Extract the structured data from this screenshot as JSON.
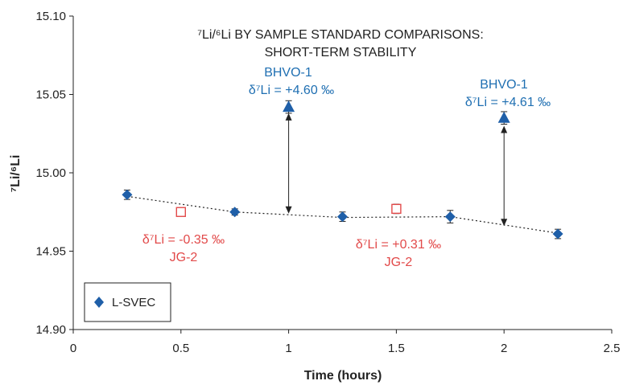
{
  "chart_data": {
    "type": "scatter",
    "title_lines": [
      "⁷Li/⁶Li BY SAMPLE STANDARD COMPARISONS:",
      "SHORT-TERM STABILITY"
    ],
    "xlabel": "Time (hours)",
    "ylabel": "⁷Li/⁶Li",
    "xlim": [
      0,
      2.5
    ],
    "ylim": [
      14.9,
      15.1
    ],
    "x_ticks": [
      0,
      0.5,
      1,
      1.5,
      2,
      2.5
    ],
    "x_tick_labels": [
      "0",
      "0.5",
      "1",
      "1.5",
      "2",
      "2.5"
    ],
    "y_ticks": [
      14.9,
      14.95,
      15.0,
      15.05,
      15.1
    ],
    "y_tick_labels": [
      "14.90",
      "14.95",
      "15.00",
      "15.05",
      "15.10"
    ],
    "grid": false,
    "legend_position": "bottom-left",
    "series": [
      {
        "name": "L-SVEC",
        "marker": "diamond",
        "color": "#1f5fa8",
        "x": [
          0.25,
          0.75,
          1.25,
          1.75,
          2.25
        ],
        "y": [
          14.986,
          14.975,
          14.972,
          14.972,
          14.961
        ],
        "err": [
          0.003,
          0.002,
          0.003,
          0.004,
          0.003
        ]
      },
      {
        "marker": "triangle",
        "color": "#1f5fa8",
        "x": [
          1.0,
          2.0
        ],
        "y": [
          15.042,
          15.035
        ],
        "err": [
          0.004,
          0.004
        ]
      },
      {
        "marker": "open-square",
        "color": "#e24a4a",
        "x": [
          0.5,
          1.5
        ],
        "y": [
          14.975,
          14.977
        ],
        "err": [
          0.0,
          0.003
        ]
      }
    ],
    "trend_line": {
      "style": "dotted",
      "x": [
        0.25,
        0.75,
        1.25,
        1.75,
        2.25
      ],
      "y": [
        14.985,
        14.975,
        14.9715,
        14.972,
        14.9615
      ]
    },
    "arrows": [
      {
        "x": 1.0,
        "y_from": 14.974,
        "y_to": 15.038
      },
      {
        "x": 2.0,
        "y_from": 14.966,
        "y_to": 15.03
      }
    ],
    "annotations": [
      {
        "id": "bhvo1-a",
        "color": "blue",
        "lines": [
          "BHVO-1",
          "δ⁷Li = +4.60 ‰"
        ]
      },
      {
        "id": "bhvo1-b",
        "color": "blue",
        "lines": [
          "BHVO-1",
          "δ⁷Li = +4.61 ‰"
        ]
      },
      {
        "id": "jg2-a",
        "color": "red",
        "lines": [
          "δ⁷Li = -0.35 ‰",
          "JG-2"
        ]
      },
      {
        "id": "jg2-b",
        "color": "red",
        "lines": [
          "δ⁷Li = +0.31 ‰",
          "JG-2"
        ]
      }
    ],
    "legend": [
      {
        "label": "L-SVEC",
        "marker": "diamond",
        "color": "#1f5fa8"
      }
    ]
  }
}
